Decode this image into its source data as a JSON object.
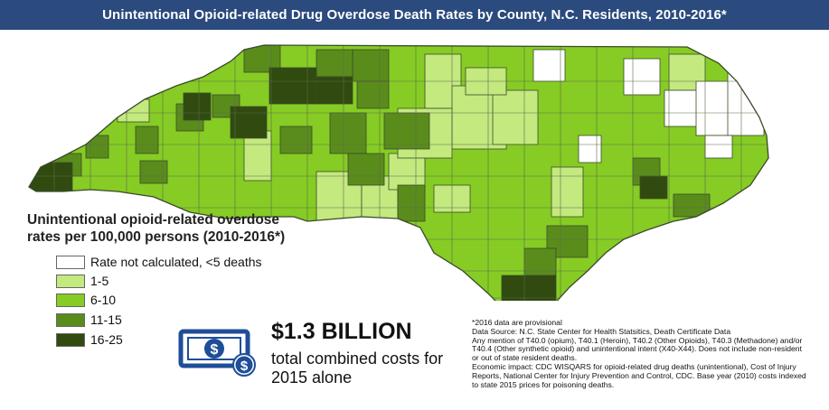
{
  "header": {
    "title": "Unintentional Opioid-related Drug Overdose Death Rates by County, N.C. Residents, 2010-2016*"
  },
  "legend": {
    "title_line1": "Unintentional opioid-related overdose",
    "title_line2": "rates per 100,000 persons (2010-2016*)",
    "items": [
      {
        "label": "Rate not calculated, <5 deaths",
        "color": "#ffffff"
      },
      {
        "label": "1-5",
        "color": "#c4e97f"
      },
      {
        "label": "6-10",
        "color": "#86cc24"
      },
      {
        "label": "11-15",
        "color": "#5a8c1c"
      },
      {
        "label": "16-25",
        "color": "#304a10"
      }
    ]
  },
  "cost": {
    "amount": "$1.3 BILLION",
    "description": "total combined costs for 2015 alone",
    "icon": "money-bill-icon"
  },
  "notes": [
    "*2016 data are provisional",
    "Data Source: N.C. State Center for Health Statsitics, Death Certificate Data",
    "Any mention of T40.0 (opium), T40.1 (Heroin), T40.2 (Other Opioids), T40.3 (Methadone) and/or T40.4 (Other synthetic opioid) and unintentional intent (X40-X44). Does not include non-resident or out of state resident deaths.",
    "Economic impact: CDC WISQARS for opioid-related drug deaths (unintentional), Cost of Injury Reports, National Center for Injury Prevention and Control, CDC. Base year (2010) costs indexed to state 2015 prices for poisoning deaths."
  ],
  "colors": {
    "banner": "#2b4a7d",
    "border": "#3a4a2a",
    "icon_blue": "#1f4e99"
  }
}
